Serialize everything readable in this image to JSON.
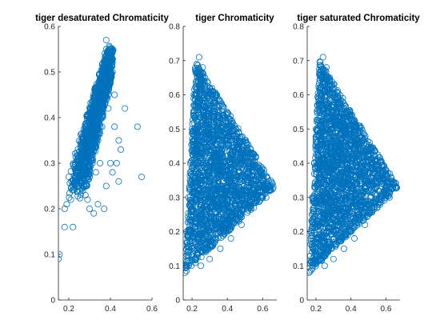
{
  "figure": {
    "marker_color": "#0072BD",
    "panels": [
      {
        "title": "tiger desaturated Chromaticity",
        "xlim": [
          0.15,
          0.6
        ],
        "ylim": [
          0,
          0.6
        ],
        "xticks": [
          0.2,
          0.4,
          0.6
        ],
        "xtick_labels": [
          "0.2",
          "0.4",
          "0.6"
        ],
        "yticks": [
          0,
          0.1,
          0.2,
          0.3,
          0.4,
          0.5,
          0.6
        ],
        "ytick_labels": [
          "0",
          "0.1",
          "0.2",
          "0.3",
          "0.4",
          "0.5",
          "0.6"
        ]
      },
      {
        "title": "tiger Chromaticity",
        "xlim": [
          0.15,
          0.68
        ],
        "ylim": [
          0,
          0.8
        ],
        "xticks": [
          0.2,
          0.4,
          0.6
        ],
        "xtick_labels": [
          "0.2",
          "0.4",
          "0.6"
        ],
        "yticks": [
          0,
          0.1,
          0.2,
          0.3,
          0.4,
          0.5,
          0.6,
          0.7,
          0.8
        ],
        "ytick_labels": [
          "0",
          "0.1",
          "0.2",
          "0.3",
          "0.4",
          "0.5",
          "0.6",
          "0.7",
          "0.8"
        ]
      },
      {
        "title": "tiger saturated Chromaticity",
        "xlim": [
          0.15,
          0.68
        ],
        "ylim": [
          0,
          0.8
        ],
        "xticks": [
          0.2,
          0.4,
          0.6
        ],
        "xtick_labels": [
          "0.2",
          "0.4",
          "0.6"
        ],
        "yticks": [
          0,
          0.1,
          0.2,
          0.3,
          0.4,
          0.5,
          0.6,
          0.7,
          0.8
        ],
        "ytick_labels": [
          "0",
          "0.1",
          "0.2",
          "0.3",
          "0.4",
          "0.5",
          "0.6",
          "0.7",
          "0.8"
        ]
      }
    ]
  },
  "chart_data": [
    {
      "type": "scatter",
      "title": "tiger desaturated Chromaticity",
      "xlabel": "",
      "ylabel": "",
      "xlim": [
        0.15,
        0.6
      ],
      "ylim": [
        0,
        0.6
      ],
      "grid": false,
      "series": [
        {
          "values": [
            [
              0.15,
              0.09
            ],
            [
              0.155,
              0.1
            ],
            [
              0.18,
              0.16
            ],
            [
              0.18,
              0.2
            ],
            [
              0.19,
              0.21
            ],
            [
              0.21,
              0.22
            ],
            [
              0.22,
              0.16
            ],
            [
              0.23,
              0.25
            ],
            [
              0.24,
              0.28
            ],
            [
              0.2,
              0.27
            ],
            [
              0.26,
              0.3
            ],
            [
              0.28,
              0.32
            ],
            [
              0.3,
              0.35
            ],
            [
              0.32,
              0.4
            ],
            [
              0.34,
              0.45
            ],
            [
              0.36,
              0.5
            ],
            [
              0.38,
              0.55
            ],
            [
              0.38,
              0.57
            ],
            [
              0.4,
              0.53
            ],
            [
              0.41,
              0.5
            ],
            [
              0.42,
              0.45
            ],
            [
              0.42,
              0.38
            ],
            [
              0.4,
              0.3
            ],
            [
              0.38,
              0.25
            ],
            [
              0.37,
              0.2
            ],
            [
              0.32,
              0.19
            ],
            [
              0.3,
              0.2
            ],
            [
              0.28,
              0.23
            ],
            [
              0.35,
              0.3
            ],
            [
              0.33,
              0.28
            ],
            [
              0.3,
              0.27
            ],
            [
              0.36,
              0.38
            ],
            [
              0.39,
              0.42
            ],
            [
              0.44,
              0.35
            ],
            [
              0.45,
              0.33
            ],
            [
              0.47,
              0.42
            ],
            [
              0.44,
              0.26
            ],
            [
              0.53,
              0.38
            ],
            [
              0.55,
              0.27
            ],
            [
              0.27,
              0.25
            ],
            [
              0.29,
              0.22
            ],
            [
              0.34,
              0.21
            ],
            [
              0.41,
              0.28
            ],
            [
              0.43,
              0.3
            ],
            [
              0.31,
              0.31
            ]
          ]
        }
      ]
    },
    {
      "type": "scatter",
      "title": "tiger Chromaticity",
      "xlabel": "",
      "ylabel": "",
      "xlim": [
        0.15,
        0.68
      ],
      "ylim": [
        0,
        0.8
      ],
      "grid": false,
      "series": [
        {
          "values": [
            [
              0.16,
              0.08
            ],
            [
              0.18,
              0.1
            ],
            [
              0.2,
              0.13
            ],
            [
              0.17,
              0.2
            ],
            [
              0.18,
              0.3
            ],
            [
              0.19,
              0.4
            ],
            [
              0.2,
              0.5
            ],
            [
              0.21,
              0.57
            ],
            [
              0.22,
              0.6
            ],
            [
              0.23,
              0.65
            ],
            [
              0.24,
              0.71
            ],
            [
              0.26,
              0.68
            ],
            [
              0.3,
              0.62
            ],
            [
              0.35,
              0.55
            ],
            [
              0.4,
              0.5
            ],
            [
              0.45,
              0.46
            ],
            [
              0.5,
              0.42
            ],
            [
              0.55,
              0.38
            ],
            [
              0.6,
              0.35
            ],
            [
              0.64,
              0.33
            ],
            [
              0.66,
              0.33
            ],
            [
              0.62,
              0.3
            ],
            [
              0.55,
              0.27
            ],
            [
              0.48,
              0.22
            ],
            [
              0.42,
              0.18
            ],
            [
              0.36,
              0.15
            ],
            [
              0.3,
              0.12
            ],
            [
              0.25,
              0.1
            ],
            [
              0.22,
              0.2
            ],
            [
              0.25,
              0.25
            ],
            [
              0.3,
              0.3
            ],
            [
              0.35,
              0.35
            ],
            [
              0.28,
              0.4
            ],
            [
              0.25,
              0.45
            ],
            [
              0.32,
              0.42
            ],
            [
              0.4,
              0.38
            ],
            [
              0.45,
              0.3
            ],
            [
              0.5,
              0.32
            ],
            [
              0.27,
              0.35
            ],
            [
              0.33,
              0.22
            ],
            [
              0.38,
              0.28
            ],
            [
              0.21,
              0.3
            ],
            [
              0.23,
              0.38
            ],
            [
              0.26,
              0.55
            ],
            [
              0.29,
              0.5
            ]
          ]
        }
      ]
    },
    {
      "type": "scatter",
      "title": "tiger saturated Chromaticity",
      "xlabel": "",
      "ylabel": "",
      "xlim": [
        0.15,
        0.68
      ],
      "ylim": [
        0,
        0.8
      ],
      "grid": false,
      "series": [
        {
          "values": [
            [
              0.16,
              0.08
            ],
            [
              0.18,
              0.1
            ],
            [
              0.2,
              0.13
            ],
            [
              0.17,
              0.2
            ],
            [
              0.18,
              0.3
            ],
            [
              0.19,
              0.4
            ],
            [
              0.2,
              0.5
            ],
            [
              0.21,
              0.57
            ],
            [
              0.22,
              0.6
            ],
            [
              0.23,
              0.65
            ],
            [
              0.24,
              0.71
            ],
            [
              0.26,
              0.68
            ],
            [
              0.3,
              0.62
            ],
            [
              0.35,
              0.55
            ],
            [
              0.4,
              0.5
            ],
            [
              0.45,
              0.46
            ],
            [
              0.5,
              0.42
            ],
            [
              0.55,
              0.38
            ],
            [
              0.6,
              0.35
            ],
            [
              0.64,
              0.33
            ],
            [
              0.66,
              0.33
            ],
            [
              0.62,
              0.3
            ],
            [
              0.55,
              0.27
            ],
            [
              0.48,
              0.22
            ],
            [
              0.42,
              0.18
            ],
            [
              0.36,
              0.15
            ],
            [
              0.3,
              0.12
            ],
            [
              0.25,
              0.1
            ],
            [
              0.22,
              0.2
            ],
            [
              0.25,
              0.25
            ],
            [
              0.3,
              0.3
            ],
            [
              0.35,
              0.35
            ],
            [
              0.28,
              0.4
            ],
            [
              0.25,
              0.45
            ],
            [
              0.32,
              0.42
            ],
            [
              0.4,
              0.38
            ],
            [
              0.45,
              0.3
            ],
            [
              0.5,
              0.32
            ],
            [
              0.27,
              0.35
            ],
            [
              0.33,
              0.22
            ],
            [
              0.38,
              0.28
            ],
            [
              0.21,
              0.3
            ],
            [
              0.23,
              0.38
            ],
            [
              0.26,
              0.55
            ],
            [
              0.29,
              0.5
            ]
          ]
        }
      ]
    }
  ]
}
